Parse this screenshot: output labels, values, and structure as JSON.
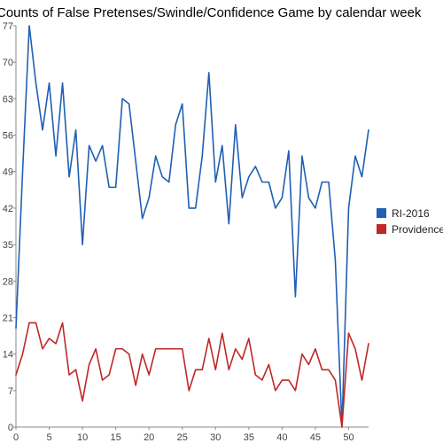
{
  "chart_data": {
    "type": "line",
    "title": "Counts of False Pretenses/Swindle/Confidence Game by calendar week",
    "xlabel": "",
    "ylabel": "",
    "xlim": [
      0,
      53
    ],
    "ylim": [
      0,
      77
    ],
    "x_ticks": [
      0,
      5,
      10,
      15,
      20,
      25,
      30,
      35,
      40,
      45,
      50
    ],
    "y_ticks": [
      0,
      7,
      14,
      21,
      28,
      35,
      42,
      49,
      56,
      63,
      70,
      77
    ],
    "grid": false,
    "legend_position": "right",
    "x": [
      0,
      1,
      2,
      3,
      4,
      5,
      6,
      7,
      8,
      9,
      10,
      11,
      12,
      13,
      14,
      15,
      16,
      17,
      18,
      19,
      20,
      21,
      22,
      23,
      24,
      25,
      26,
      27,
      28,
      29,
      30,
      31,
      32,
      33,
      34,
      35,
      36,
      37,
      38,
      39,
      40,
      41,
      42,
      43,
      44,
      45,
      46,
      47,
      48,
      49,
      50,
      51,
      52,
      53
    ],
    "series": [
      {
        "name": "RI-2016",
        "color": "#1f5fb4",
        "values": [
          19,
          49,
          77,
          66,
          57,
          66,
          52,
          66,
          48,
          57,
          35,
          54,
          51,
          54,
          46,
          46,
          63,
          62,
          51,
          40,
          44,
          52,
          48,
          47,
          58,
          62,
          42,
          42,
          52,
          68,
          47,
          54,
          39,
          58,
          44,
          48,
          50,
          47,
          47,
          42,
          44,
          53,
          25,
          52,
          44,
          42,
          47,
          47,
          32,
          0,
          42,
          52,
          48,
          57
        ]
      },
      {
        "name": "Providence",
        "color": "#c02727",
        "values": [
          10,
          14,
          20,
          20,
          15,
          17,
          16,
          20,
          10,
          11,
          5,
          12,
          15,
          9,
          10,
          15,
          15,
          14,
          8,
          14,
          10,
          15,
          15,
          15,
          15,
          15,
          7,
          11,
          11,
          17,
          11,
          18,
          11,
          15,
          13,
          17,
          10,
          9,
          12,
          7,
          9,
          9,
          7,
          14,
          12,
          15,
          11,
          11,
          9,
          0,
          18,
          15,
          9,
          16
        ]
      }
    ]
  }
}
